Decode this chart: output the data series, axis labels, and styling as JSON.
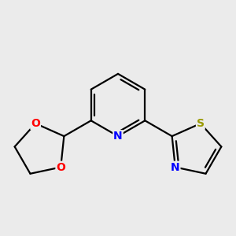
{
  "background_color": "#ebebeb",
  "bond_color": "#000000",
  "N_color": "#0000ff",
  "O_color": "#ff0000",
  "S_color": "#999900",
  "font_size": 10,
  "linewidth": 1.6,
  "figsize": [
    3.0,
    3.0
  ],
  "dpi": 100,
  "xlim": [
    -1.7,
    1.9
  ],
  "ylim": [
    -1.6,
    1.5
  ]
}
